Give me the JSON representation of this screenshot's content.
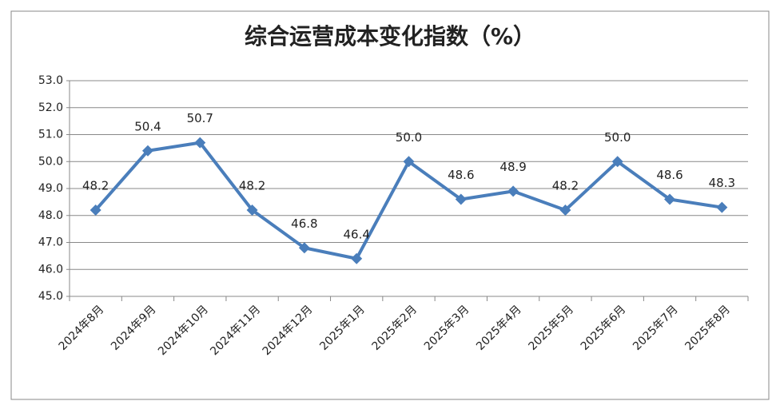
{
  "chart_data": {
    "type": "line",
    "title": "综合运营成本变化指数（%）",
    "categories": [
      "2024年8月",
      "2024年9月",
      "2024年10月",
      "2024年11月",
      "2024年12月",
      "2025年1月",
      "2025年2月",
      "2025年3月",
      "2025年4月",
      "2025年5月",
      "2025年6月",
      "2025年7月",
      "2025年8月"
    ],
    "values": [
      48.2,
      50.4,
      50.7,
      48.2,
      46.8,
      46.4,
      50.0,
      48.6,
      48.9,
      48.2,
      50.0,
      48.6,
      48.3
    ],
    "value_labels": [
      "48.2",
      "50.4",
      "50.7",
      "48.2",
      "46.8",
      "46.4",
      "50.0",
      "48.6",
      "48.9",
      "48.2",
      "50.0",
      "48.6",
      "48.3"
    ],
    "color": "#4a7ebb",
    "ylim": [
      45,
      53
    ],
    "yticks": [
      {
        "value": 45,
        "label": "45.0"
      },
      {
        "value": 46,
        "label": "46.0"
      },
      {
        "value": 47,
        "label": "47.0"
      },
      {
        "value": 48,
        "label": "48.0"
      },
      {
        "value": 49,
        "label": "49.0"
      },
      {
        "value": 50,
        "label": "50.0"
      },
      {
        "value": 51,
        "label": "51.0"
      },
      {
        "value": 52,
        "label": "52.0"
      },
      {
        "value": 53,
        "label": "53.0"
      }
    ],
    "grid": true
  }
}
